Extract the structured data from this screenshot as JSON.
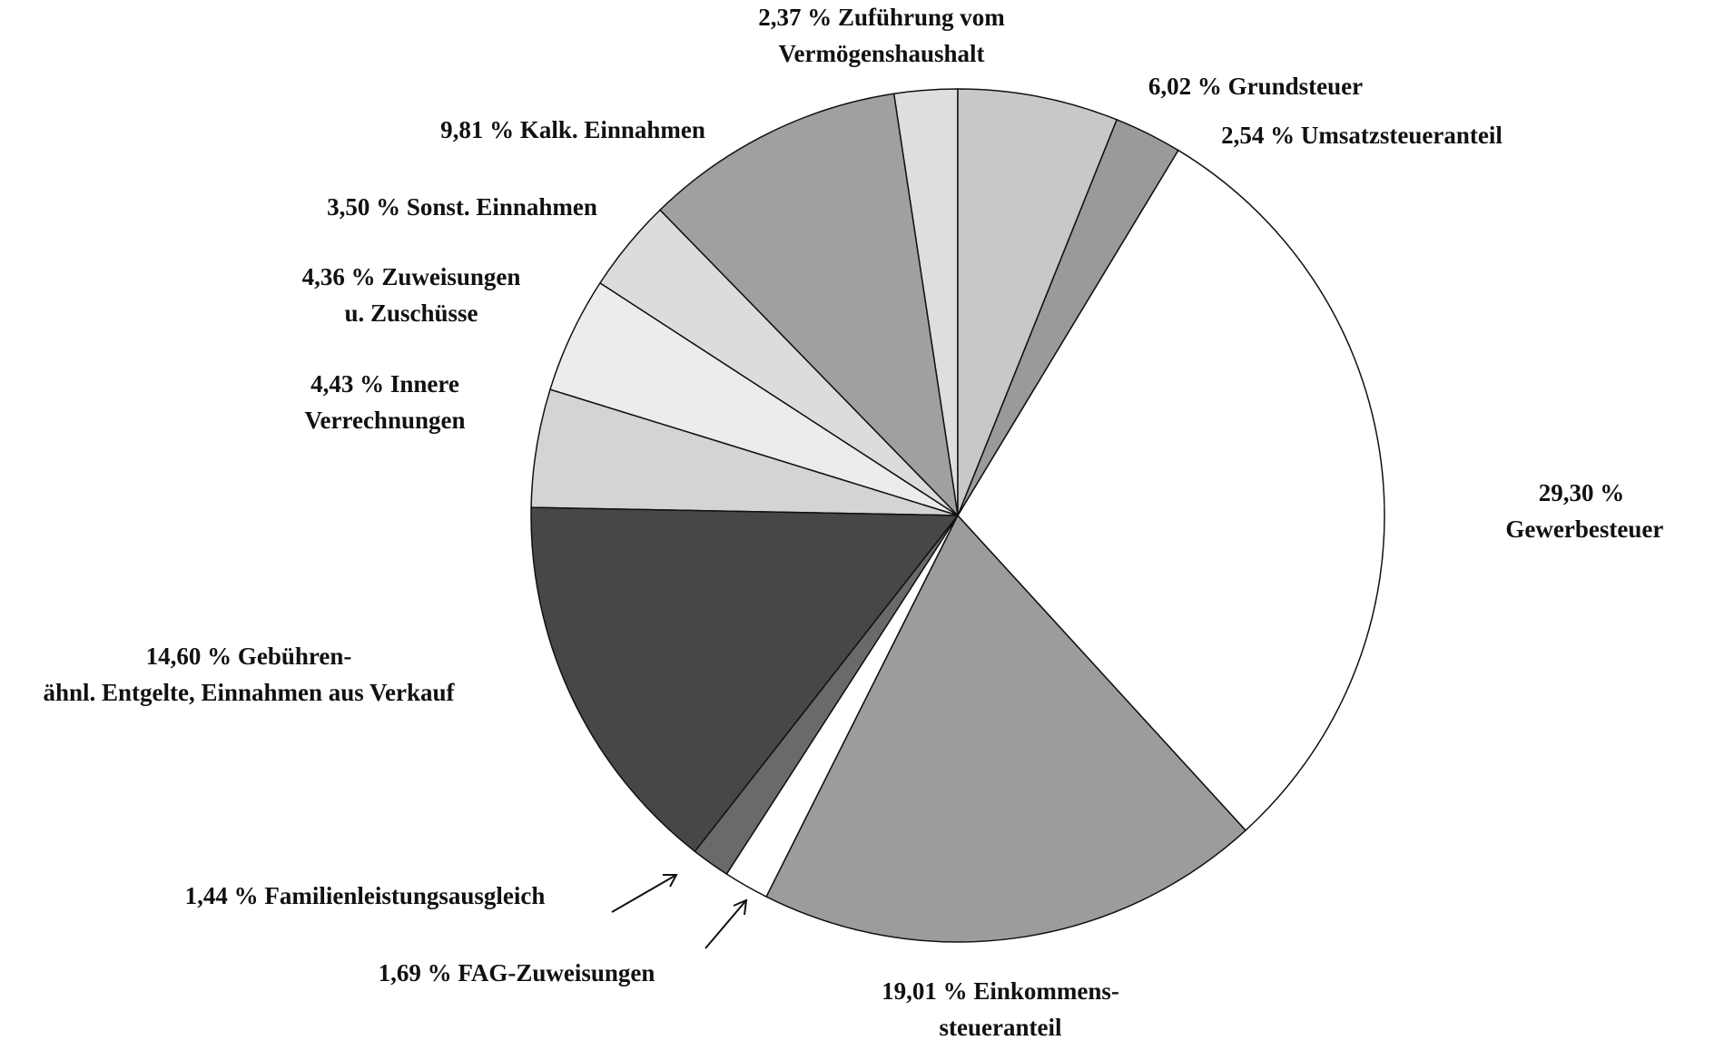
{
  "chart_data": {
    "type": "pie",
    "categories": [
      "Grundsteuer",
      "Umsatzsteueranteil",
      "Gewerbesteuer",
      "Einkommens-\nsteueranteil",
      "FAG-Zuweisungen",
      "Familienleistungsausgleich",
      "Gebühren-\nähnl. Entgelte, Einnahmen aus Verkauf",
      "Innere\nVerrechnungen",
      "Zuweisungen\nu. Zuschüsse",
      "Sonst. Einnahmen",
      "Kalk. Einnahmen",
      "Zuführung vom\nVermögenshaushalt"
    ],
    "values": [
      6.02,
      2.54,
      29.3,
      19.01,
      1.69,
      1.44,
      14.6,
      4.43,
      4.36,
      3.5,
      9.81,
      2.37
    ],
    "value_labels": [
      "6,02 %",
      "2,54 %",
      "29,30 %",
      "19,01 %",
      "1,69 %",
      "1,44 %",
      "14,60 %",
      "4,43 %",
      "4,36 %",
      "3,50 %",
      "9,81 %",
      "2,37 %"
    ],
    "colors": [
      "#c8c8c8",
      "#9a9a9a",
      "#ffffff",
      "#9c9c9c",
      "#ffffff",
      "#6a6a6a",
      "#474747",
      "#d4d4d4",
      "#ececec",
      "#dcdcdc",
      "#a0a0a0",
      "#dedede"
    ]
  }
}
